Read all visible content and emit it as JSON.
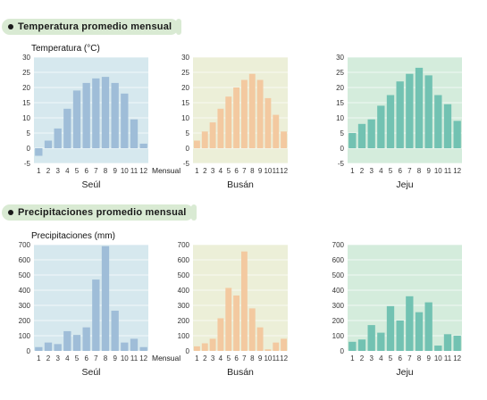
{
  "sections": {
    "temperature_title": "Temperatura promedio mensual",
    "precipitation_title": "Precipitaciones promedio mensual"
  },
  "labels": {
    "temperature_axis": "Temperatura (°C)",
    "precipitation_axis": "Precipitaciones (mm)",
    "monthly": "Mensual"
  },
  "colors": {
    "seoul_bg": "#d6e8ee",
    "seoul_bar": "#9fbdd8",
    "busan_bg": "#ecefd8",
    "busan_bar": "#f3c9a0",
    "jeju_bg": "#d4ecdc",
    "jeju_bar": "#72c2b2"
  },
  "chart_data": [
    {
      "type": "bar",
      "group": "temperature",
      "city": "Seúl",
      "categories": [
        "1",
        "2",
        "3",
        "4",
        "5",
        "6",
        "7",
        "8",
        "9",
        "10",
        "11",
        "12"
      ],
      "values": [
        -2.5,
        2.5,
        6.5,
        13,
        19,
        21.5,
        23,
        23.5,
        21.5,
        18,
        9.5,
        1.5
      ],
      "ylim": [
        -5,
        30
      ],
      "yticks": [
        -5,
        0,
        5,
        10,
        15,
        20,
        25,
        30
      ],
      "ylabel": "Temperatura (°C)",
      "xlabel": "Mensual"
    },
    {
      "type": "bar",
      "group": "temperature",
      "city": "Busán",
      "categories": [
        "1",
        "2",
        "3",
        "4",
        "5",
        "6",
        "7",
        "8",
        "9",
        "10",
        "11",
        "12"
      ],
      "values": [
        2.5,
        5.5,
        8.5,
        13,
        17,
        20,
        22.5,
        24.5,
        22.5,
        16.5,
        11,
        5.5
      ],
      "ylim": [
        -5,
        30
      ],
      "yticks": [
        -5,
        0,
        5,
        10,
        15,
        20,
        25,
        30
      ],
      "ylabel": "",
      "xlabel": ""
    },
    {
      "type": "bar",
      "group": "temperature",
      "city": "Jeju",
      "categories": [
        "1",
        "2",
        "3",
        "4",
        "5",
        "6",
        "7",
        "8",
        "9",
        "10",
        "11",
        "12"
      ],
      "values": [
        5,
        8,
        9.5,
        14,
        17.5,
        22,
        24.5,
        26.5,
        24,
        17.5,
        14.5,
        9
      ],
      "ylim": [
        -5,
        30
      ],
      "yticks": [
        -5,
        0,
        5,
        10,
        15,
        20,
        25,
        30
      ],
      "ylabel": "",
      "xlabel": ""
    },
    {
      "type": "bar",
      "group": "precipitation",
      "city": "Seúl",
      "categories": [
        "1",
        "2",
        "3",
        "4",
        "5",
        "6",
        "7",
        "8",
        "9",
        "10",
        "11",
        "12"
      ],
      "values": [
        25,
        55,
        45,
        130,
        105,
        155,
        470,
        690,
        265,
        55,
        80,
        25
      ],
      "ylim": [
        0,
        700
      ],
      "yticks": [
        0,
        100,
        200,
        300,
        400,
        500,
        600,
        700
      ],
      "ylabel": "Precipitaciones (mm)",
      "xlabel": "Mensual"
    },
    {
      "type": "bar",
      "group": "precipitation",
      "city": "Busán",
      "categories": [
        "1",
        "2",
        "3",
        "4",
        "5",
        "6",
        "7",
        "8",
        "9",
        "10",
        "11",
        "12"
      ],
      "values": [
        30,
        50,
        80,
        215,
        415,
        365,
        655,
        280,
        155,
        10,
        55,
        80
      ],
      "ylim": [
        0,
        700
      ],
      "yticks": [
        0,
        100,
        200,
        300,
        400,
        500,
        600,
        700
      ],
      "ylabel": "",
      "xlabel": ""
    },
    {
      "type": "bar",
      "group": "precipitation",
      "city": "Jeju",
      "categories": [
        "1",
        "2",
        "3",
        "4",
        "5",
        "6",
        "7",
        "8",
        "9",
        "10",
        "11",
        "12"
      ],
      "values": [
        60,
        75,
        170,
        120,
        295,
        200,
        360,
        255,
        320,
        35,
        110,
        100
      ],
      "ylim": [
        0,
        700
      ],
      "yticks": [
        0,
        100,
        200,
        300,
        400,
        500,
        600,
        700
      ],
      "ylabel": "",
      "xlabel": ""
    }
  ]
}
